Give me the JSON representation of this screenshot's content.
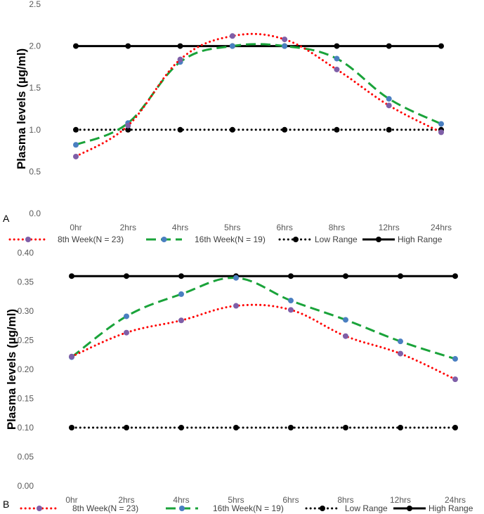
{
  "chart_data": [
    {
      "panel_label": "A",
      "type": "line",
      "ylabel": "Plasma levels (µg/ml)",
      "xlabel": "",
      "ylim": [
        0,
        2.5
      ],
      "yticks": [
        "0.0",
        "0.5",
        "1.0",
        "1.5",
        "2.0",
        "2.5"
      ],
      "categories": [
        "0hr",
        "2hrs",
        "4hrs",
        "5hrs",
        "6hrs",
        "8hrs",
        "12hrs",
        "24hrs"
      ],
      "legend_position": "bottom",
      "series": [
        {
          "name": "8th Week(N = 23)",
          "style": "dotted",
          "color": "#ff0000",
          "marker_color": "#7f5fa8",
          "smooth": true,
          "values": [
            0.68,
            1.05,
            1.84,
            2.12,
            2.08,
            1.72,
            1.29,
            0.97
          ]
        },
        {
          "name": "16th Week(N = 19)",
          "style": "dashed",
          "color": "#1aa33a",
          "marker_color": "#4a7fc1",
          "smooth": true,
          "values": [
            0.82,
            1.08,
            1.81,
            2.0,
            2.0,
            1.85,
            1.37,
            1.07
          ]
        },
        {
          "name": "Low Range",
          "style": "dotted",
          "color": "#000000",
          "marker_color": "#000000",
          "smooth": false,
          "values": [
            1.0,
            1.0,
            1.0,
            1.0,
            1.0,
            1.0,
            1.0,
            1.0
          ]
        },
        {
          "name": "High Range",
          "style": "solid",
          "color": "#000000",
          "marker_color": "#000000",
          "smooth": false,
          "values": [
            2.0,
            2.0,
            2.0,
            2.0,
            2.0,
            2.0,
            2.0,
            2.0
          ]
        }
      ]
    },
    {
      "panel_label": "B",
      "type": "line",
      "ylabel": "Plasma levels (µg/ml)",
      "xlabel": "",
      "ylim": [
        0,
        0.4
      ],
      "yticks": [
        "0.00",
        "0.05",
        "0.10",
        "0.15",
        "0.20",
        "0.25",
        "0.30",
        "0.35",
        "0.40"
      ],
      "categories": [
        "0hr",
        "2hrs",
        "4hrs",
        "5hrs",
        "6hrs",
        "8hrs",
        "12hrs",
        "24hrs"
      ],
      "legend_position": "bottom",
      "series": [
        {
          "name": "8th Week(N = 23)",
          "style": "dotted",
          "color": "#ff0000",
          "marker_color": "#7f5fa8",
          "smooth": true,
          "values": [
            0.222,
            0.263,
            0.284,
            0.309,
            0.302,
            0.257,
            0.227,
            0.183
          ]
        },
        {
          "name": "16th Week(N = 19)",
          "style": "dashed",
          "color": "#1aa33a",
          "marker_color": "#4a7fc1",
          "smooth": true,
          "values": [
            0.221,
            0.291,
            0.329,
            0.357,
            0.318,
            0.285,
            0.248,
            0.218
          ]
        },
        {
          "name": "Low Range",
          "style": "dotted",
          "color": "#000000",
          "marker_color": "#000000",
          "smooth": false,
          "values": [
            0.1,
            0.1,
            0.1,
            0.1,
            0.1,
            0.1,
            0.1,
            0.1
          ]
        },
        {
          "name": "High Range",
          "style": "solid",
          "color": "#000000",
          "marker_color": "#000000",
          "smooth": false,
          "values": [
            0.36,
            0.36,
            0.36,
            0.36,
            0.36,
            0.36,
            0.36,
            0.36
          ]
        }
      ]
    }
  ]
}
